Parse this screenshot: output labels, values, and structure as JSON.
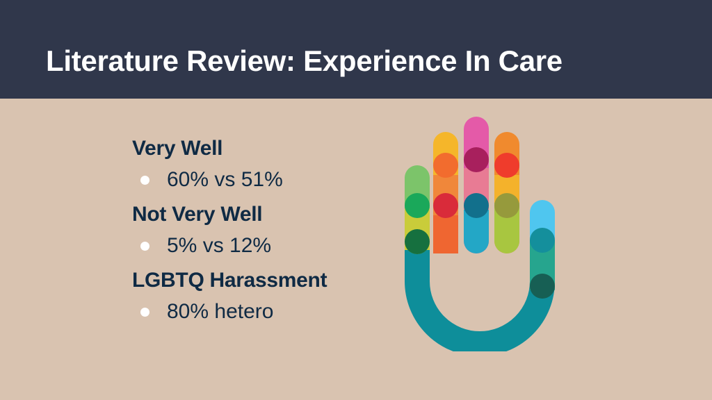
{
  "slide": {
    "title": "Literature Review: Experience In Care"
  },
  "sections": [
    {
      "heading": "Very Well",
      "bullet": "60% vs 51%"
    },
    {
      "heading": "Not Very Well",
      "bullet": "5% vs 12%"
    },
    {
      "heading": "LGBTQ Harassment",
      "bullet": "80% hetero"
    }
  ],
  "colors": {
    "header_background": "#30374b",
    "slide_background": "#d9c3b0",
    "title_text": "#ffffff",
    "body_text": "#0f2a44",
    "bullet_dot": "#ffffff"
  },
  "graphic": {
    "icon": "multicolor-hand-logo"
  }
}
